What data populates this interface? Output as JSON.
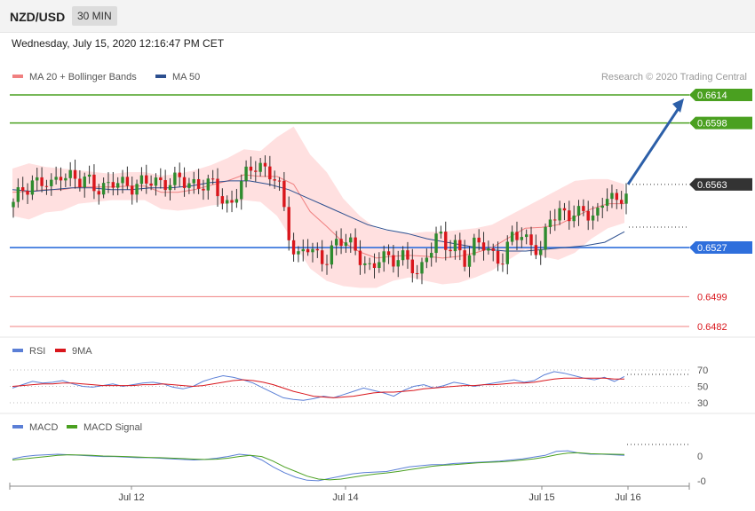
{
  "header": {
    "symbol": "NZD/USD",
    "timeframe": "30 MIN"
  },
  "timestamp": "Wednesday, July 15, 2020 12:16:47 PM CET",
  "legend_main": [
    {
      "label": "MA 20 + Bollinger Bands",
      "color": "#f08080"
    },
    {
      "label": "MA 50",
      "color": "#2c4f8f"
    }
  ],
  "credit": "Research © 2020 Trading Central",
  "legend_rsi": [
    {
      "label": "RSI",
      "color": "#5b7fd6"
    },
    {
      "label": "9MA",
      "color": "#d9161c"
    }
  ],
  "legend_macd": [
    {
      "label": "MACD",
      "color": "#5b7fd6"
    },
    {
      "label": "MACD Signal",
      "color": "#4aa020"
    }
  ],
  "colors": {
    "resistance": "#4aa020",
    "support": "#2f6fdc",
    "level_red": "#f08080",
    "current": "#333333",
    "candle_up": "#2e8b2e",
    "candle_down": "#d9161c",
    "arrow": "#2c5fa8",
    "band_fill": "#ffe0e0"
  },
  "chart_data": [
    {
      "type": "candlestick",
      "name": "price",
      "x_labels": [
        "Jul 12",
        "Jul 14",
        "Jul 15",
        "Jul 16"
      ],
      "levels": [
        {
          "value": 0.6614,
          "label": "0.6614",
          "kind": "resistance"
        },
        {
          "value": 0.6598,
          "label": "0.6598",
          "kind": "resistance"
        },
        {
          "value": 0.6563,
          "label": "0.6563",
          "kind": "current"
        },
        {
          "value": 0.6527,
          "label": "0.6527",
          "kind": "support"
        },
        {
          "value": 0.6499,
          "label": "0.6499",
          "kind": "minor"
        },
        {
          "value": 0.6482,
          "label": "0.6482",
          "kind": "minor"
        }
      ],
      "close_path": [
        0.655,
        0.6561,
        0.6566,
        0.6563,
        0.656,
        0.6572,
        0.6568,
        0.6562,
        0.6566,
        0.6563,
        0.656,
        0.6563,
        0.6565,
        0.6563,
        0.6562,
        0.6565,
        0.6566,
        0.6564,
        0.6563,
        0.6565,
        0.6564,
        0.6561,
        0.6556,
        0.6552,
        0.6562,
        0.6568,
        0.6578,
        0.657,
        0.6564,
        0.654,
        0.6522,
        0.6528,
        0.652,
        0.6521,
        0.653,
        0.6529,
        0.6527,
        0.6523,
        0.6512,
        0.6521,
        0.6521,
        0.6525,
        0.6515,
        0.651,
        0.6528,
        0.6534,
        0.6524,
        0.653,
        0.6521,
        0.6527,
        0.6528,
        0.6524,
        0.652,
        0.6532,
        0.6536,
        0.653,
        0.6522,
        0.6545,
        0.655,
        0.6545,
        0.6544,
        0.6548,
        0.6548,
        0.6556,
        0.655,
        0.6563
      ],
      "bb_upper": [
        0.6572,
        0.6575,
        0.6573,
        0.6572,
        0.6571,
        0.657,
        0.6569,
        0.657,
        0.657,
        0.6568,
        0.6569,
        0.6571,
        0.6574,
        0.6578,
        0.6583,
        0.6582,
        0.659,
        0.6596,
        0.658,
        0.657,
        0.6555,
        0.6545,
        0.6538,
        0.6536,
        0.6535,
        0.6536,
        0.6536,
        0.6537,
        0.6538,
        0.654,
        0.6545,
        0.655,
        0.6555,
        0.656,
        0.6565,
        0.6566,
        0.6566,
        0.6563
      ],
      "bb_lower": [
        0.6545,
        0.6543,
        0.6547,
        0.6548,
        0.6552,
        0.6553,
        0.6554,
        0.6554,
        0.6554,
        0.6549,
        0.6548,
        0.6549,
        0.6551,
        0.6552,
        0.6554,
        0.6553,
        0.6545,
        0.653,
        0.6515,
        0.6508,
        0.6505,
        0.6504,
        0.6504,
        0.6508,
        0.651,
        0.6508,
        0.6506,
        0.6507,
        0.651,
        0.6514,
        0.652,
        0.6526,
        0.6522,
        0.652,
        0.6524,
        0.6532,
        0.6538,
        0.6541
      ],
      "ma50": [
        0.656,
        0.6559,
        0.656,
        0.6561,
        0.6561,
        0.656,
        0.656,
        0.6561,
        0.6561,
        0.6562,
        0.6564,
        0.6565,
        0.6565,
        0.6563,
        0.656,
        0.6555,
        0.655,
        0.6545,
        0.654,
        0.6537,
        0.6535,
        0.6532,
        0.653,
        0.6528,
        0.6526,
        0.6525,
        0.6525,
        0.6526,
        0.6527,
        0.6528,
        0.653,
        0.6536
      ],
      "projection_target": 0.6614
    },
    {
      "type": "line",
      "name": "RSI",
      "y_ticks": [
        "70",
        "50",
        "30"
      ],
      "series": [
        {
          "name": "RSI",
          "values": [
            48,
            52,
            56,
            54,
            55,
            57,
            53,
            50,
            49,
            51,
            53,
            50,
            52,
            54,
            55,
            53,
            49,
            47,
            50,
            56,
            60,
            63,
            61,
            58,
            54,
            48,
            42,
            36,
            34,
            33,
            35,
            38,
            36,
            40,
            44,
            48,
            45,
            42,
            38,
            45,
            50,
            52,
            48,
            51,
            55,
            53,
            50,
            52,
            54,
            56,
            58,
            55,
            57,
            64,
            68,
            66,
            63,
            60,
            58,
            61,
            56,
            62
          ]
        },
        {
          "name": "9MA",
          "values": [
            50,
            51,
            52,
            53,
            53,
            54,
            54,
            53,
            52,
            51,
            51,
            51,
            51,
            52,
            52,
            53,
            52,
            51,
            50,
            51,
            53,
            55,
            57,
            58,
            57,
            55,
            52,
            48,
            44,
            41,
            38,
            37,
            36,
            37,
            38,
            40,
            42,
            43,
            43,
            44,
            45,
            47,
            48,
            49,
            50,
            51,
            51,
            52,
            52,
            53,
            54,
            54,
            55,
            57,
            59,
            60,
            60,
            60,
            60,
            60,
            59,
            59
          ]
        }
      ]
    },
    {
      "type": "line",
      "name": "MACD",
      "y_ticks": [
        "0",
        "-0"
      ],
      "series": [
        {
          "name": "MACD",
          "values": [
            0.6,
            0.8,
            0.9,
            0.95,
            1.0,
            0.95,
            0.9,
            0.85,
            0.8,
            0.8,
            0.75,
            0.7,
            0.7,
            0.65,
            0.6,
            0.55,
            0.5,
            0.55,
            0.65,
            0.8,
            1.0,
            0.9,
            0.5,
            -0.1,
            -0.6,
            -1.0,
            -1.25,
            -1.3,
            -1.1,
            -0.9,
            -0.7,
            -0.6,
            -0.55,
            -0.5,
            -0.3,
            -0.1,
            0.0,
            0.1,
            0.1,
            0.2,
            0.25,
            0.3,
            0.35,
            0.4,
            0.5,
            0.6,
            0.75,
            0.9,
            1.25,
            1.3,
            1.1,
            1.0,
            1.0,
            0.95,
            0.9
          ]
        },
        {
          "name": "MACD Signal",
          "values": [
            0.5,
            0.6,
            0.7,
            0.8,
            0.9,
            0.95,
            0.93,
            0.9,
            0.85,
            0.82,
            0.8,
            0.76,
            0.72,
            0.7,
            0.66,
            0.62,
            0.58,
            0.55,
            0.57,
            0.65,
            0.8,
            0.9,
            0.8,
            0.4,
            -0.1,
            -0.5,
            -0.9,
            -1.15,
            -1.22,
            -1.15,
            -1.0,
            -0.85,
            -0.72,
            -0.62,
            -0.5,
            -0.35,
            -0.2,
            -0.05,
            0.05,
            0.1,
            0.18,
            0.25,
            0.3,
            0.34,
            0.4,
            0.5,
            0.6,
            0.75,
            0.95,
            1.1,
            1.12,
            1.05,
            1.02,
            1.0,
            0.98
          ]
        }
      ]
    }
  ]
}
